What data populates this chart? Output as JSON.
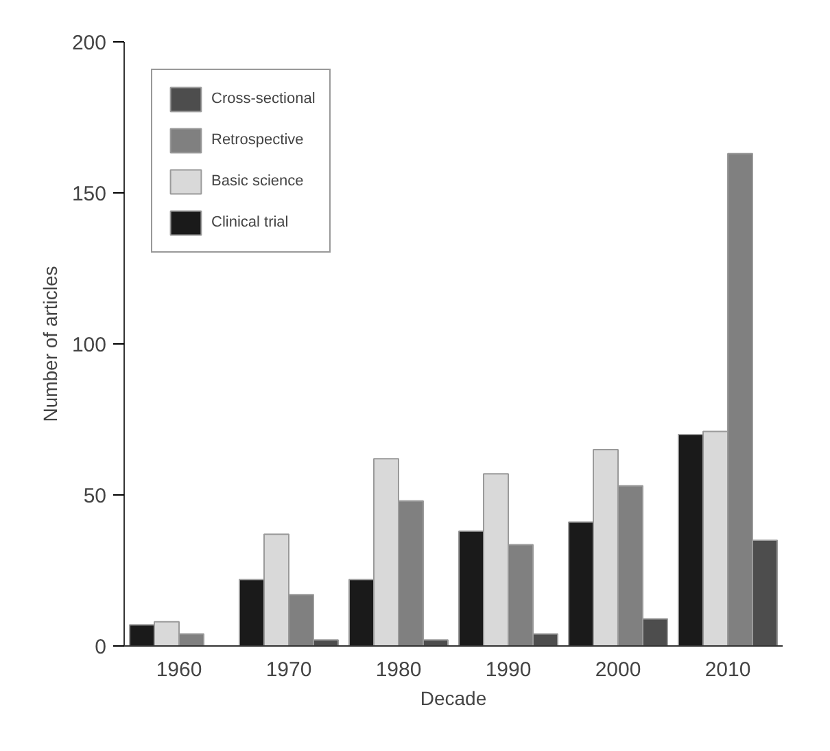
{
  "chart_data": {
    "type": "bar",
    "xlabel": "Decade",
    "ylabel": "Number of articles",
    "categories": [
      "1960",
      "1970",
      "1980",
      "1990",
      "2000",
      "2010"
    ],
    "series": [
      {
        "name": "Clinical trial",
        "color": "#1a1a1a",
        "values": [
          7,
          22,
          22,
          38,
          41,
          70
        ]
      },
      {
        "name": "Basic science",
        "color": "#d9d9d9",
        "values": [
          8,
          37,
          62,
          57,
          65,
          71
        ]
      },
      {
        "name": "Retrospective",
        "color": "#808080",
        "values": [
          4,
          17,
          48,
          33.5,
          53,
          163
        ]
      },
      {
        "name": "Cross-sectional",
        "color": "#4d4d4d",
        "values": [
          null,
          2,
          2,
          4,
          9,
          35
        ]
      }
    ],
    "ylim": [
      0,
      200
    ],
    "yticks": [
      0,
      50,
      100,
      150,
      200
    ],
    "grid": false,
    "legend": "top left"
  }
}
